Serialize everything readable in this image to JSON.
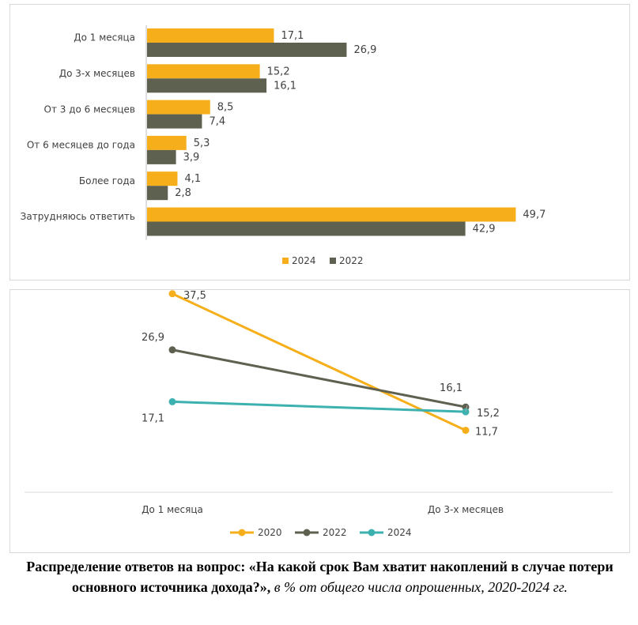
{
  "colors": {
    "c2024": "#F6AF1B",
    "c2022": "#5F6150",
    "c2020": "#F6AF1B",
    "line2024": "#3DB0B0",
    "axis": "#bfbfbf",
    "text": "#404040"
  },
  "chart_data": [
    {
      "type": "bar",
      "orientation": "horizontal",
      "categories": [
        "До 1 месяца",
        "До 3-х месяцев",
        "От 3 до 6 месяцев",
        "От 6 месяцев до года",
        "Более года",
        "Затрудняюсь ответить"
      ],
      "series": [
        {
          "name": "2024",
          "values": [
            17.1,
            15.2,
            8.5,
            5.3,
            4.1,
            49.7
          ],
          "labels": [
            "17,1",
            "15,2",
            "8,5",
            "5,3",
            "4,1",
            "49,7"
          ]
        },
        {
          "name": "2022",
          "values": [
            26.9,
            16.1,
            7.4,
            3.9,
            2.8,
            42.9
          ],
          "labels": [
            "26,9",
            "16,1",
            "7,4",
            "3,9",
            "2,8",
            "42,9"
          ]
        }
      ],
      "xlim": [
        0,
        52
      ],
      "legend": [
        "2024",
        "2022"
      ],
      "legend_position": "bottom"
    },
    {
      "type": "line",
      "categories": [
        "До 1 месяца",
        "До 3-х месяцев"
      ],
      "series": [
        {
          "name": "2020",
          "values": [
            37.5,
            11.7
          ],
          "labels": [
            "37,5",
            "11,7"
          ]
        },
        {
          "name": "2022",
          "values": [
            26.9,
            16.1
          ],
          "labels": [
            "26,9",
            "16,1"
          ]
        },
        {
          "name": "2024",
          "values": [
            17.1,
            15.2
          ],
          "labels": [
            "17,1",
            "15,2"
          ]
        }
      ],
      "ylim": [
        0,
        42
      ],
      "legend": [
        "2020",
        "2022",
        "2024"
      ],
      "legend_position": "bottom"
    }
  ],
  "caption": {
    "bold": "Распределение ответов на вопрос: «На какой срок Вам хватит накоплений в случае потери основного источника дохода?»,",
    "italic": " в % от общего числа опрошенных, 2020-2024 гг."
  }
}
